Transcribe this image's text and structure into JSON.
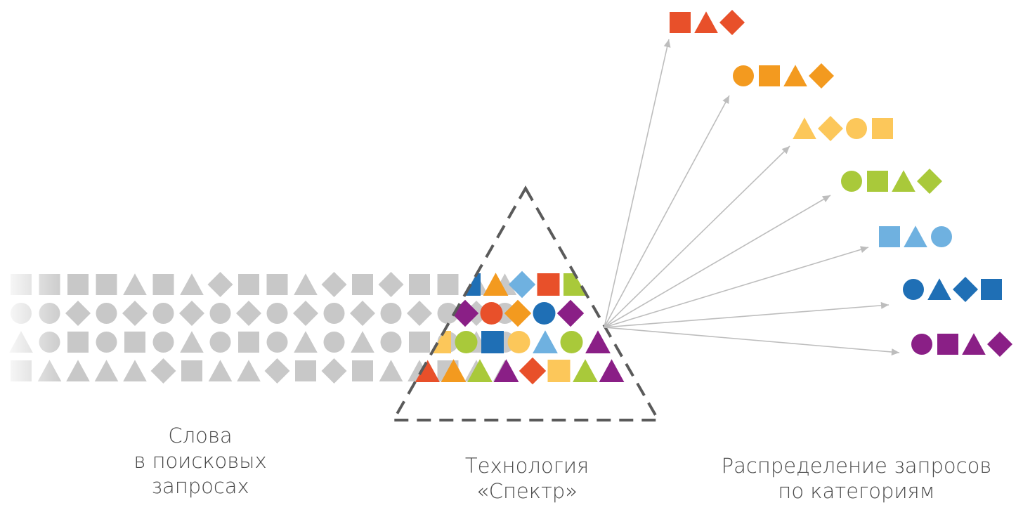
{
  "captions": {
    "words": [
      "Слова",
      "в поисковых",
      "запросах"
    ],
    "technology": [
      "Технология",
      "«Спектр»"
    ],
    "distribution": [
      "Распределение запросов",
      "по категориям"
    ]
  },
  "colors": {
    "gray": "#c8c8c8",
    "red": "#e8502a",
    "orange": "#f39a1f",
    "yellow": "#fcc75a",
    "green": "#a9c93a",
    "lightblue": "#6fb1e0",
    "blue": "#1f6fb5",
    "purple": "#8a1f86",
    "arrow": "#bdbdbd",
    "prism_dash": "#5a5a5a",
    "caption": "#4a4a4a"
  },
  "input_rows": [
    [
      "square",
      "square",
      "square",
      "square",
      "triangle",
      "square",
      "triangle",
      "diamond",
      "square",
      "square",
      "triangle",
      "diamond",
      "square",
      "diamond",
      "square",
      "square",
      "triangle",
      "triangle"
    ],
    [
      "circle",
      "circle",
      "diamond",
      "circle",
      "diamond",
      "circle",
      "diamond",
      "circle",
      "diamond",
      "circle",
      "diamond",
      "circle",
      "diamond",
      "circle",
      "diamond",
      "circle",
      "diamond",
      "circle"
    ],
    [
      "triangle",
      "circle",
      "square",
      "circle",
      "square",
      "circle",
      "triangle",
      "circle",
      "square",
      "circle",
      "triangle",
      "circle",
      "triangle",
      "circle",
      "square",
      "circle",
      "triangle",
      "circle"
    ],
    [
      "square",
      "triangle",
      "triangle",
      "triangle",
      "triangle",
      "diamond",
      "square",
      "triangle",
      "triangle",
      "diamond",
      "square",
      "diamond",
      "square",
      "triangle",
      "triangle",
      "square",
      "triangle",
      "triangle"
    ]
  ],
  "prism_rows": [
    [
      {
        "shape": "square",
        "color": "blue"
      },
      {
        "shape": "triangle",
        "color": "orange"
      },
      {
        "shape": "diamond",
        "color": "lightblue"
      },
      {
        "shape": "square",
        "color": "red"
      },
      {
        "shape": "square",
        "color": "green"
      }
    ],
    [
      {
        "shape": "diamond",
        "color": "purple"
      },
      {
        "shape": "circle",
        "color": "red"
      },
      {
        "shape": "diamond",
        "color": "orange"
      },
      {
        "shape": "circle",
        "color": "blue"
      },
      {
        "shape": "diamond",
        "color": "purple"
      }
    ],
    [
      {
        "shape": "square",
        "color": "yellow"
      },
      {
        "shape": "circle",
        "color": "green"
      },
      {
        "shape": "square",
        "color": "blue"
      },
      {
        "shape": "circle",
        "color": "yellow"
      },
      {
        "shape": "triangle",
        "color": "lightblue"
      },
      {
        "shape": "circle",
        "color": "green"
      },
      {
        "shape": "triangle",
        "color": "purple"
      }
    ],
    [
      {
        "shape": "triangle",
        "color": "red"
      },
      {
        "shape": "triangle",
        "color": "orange"
      },
      {
        "shape": "triangle",
        "color": "green"
      },
      {
        "shape": "triangle",
        "color": "purple"
      },
      {
        "shape": "diamond",
        "color": "red"
      },
      {
        "shape": "square",
        "color": "yellow"
      },
      {
        "shape": "triangle",
        "color": "green"
      },
      {
        "shape": "triangle",
        "color": "purple"
      }
    ]
  ],
  "output_groups": [
    {
      "color": "red",
      "shapes": [
        "square",
        "triangle",
        "diamond"
      ]
    },
    {
      "color": "orange",
      "shapes": [
        "circle",
        "square",
        "triangle",
        "diamond"
      ]
    },
    {
      "color": "yellow",
      "shapes": [
        "triangle",
        "diamond",
        "circle",
        "square"
      ]
    },
    {
      "color": "green",
      "shapes": [
        "circle",
        "square",
        "triangle",
        "diamond"
      ]
    },
    {
      "color": "lightblue",
      "shapes": [
        "square",
        "triangle",
        "circle"
      ]
    },
    {
      "color": "blue",
      "shapes": [
        "circle",
        "triangle",
        "diamond",
        "square"
      ]
    },
    {
      "color": "purple",
      "shapes": [
        "circle",
        "square",
        "triangle",
        "diamond"
      ]
    }
  ]
}
